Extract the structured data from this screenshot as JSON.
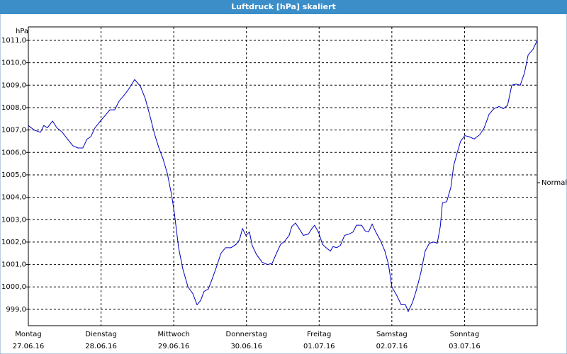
{
  "chart_data": {
    "type": "line",
    "title": "Luftdruck [hPa] skaliert",
    "y_label": "hPa",
    "xlim": [
      0,
      168
    ],
    "ylim": [
      998.27,
      1011.6
    ],
    "grid": true,
    "xticks": [
      {
        "value": 0,
        "label": "Montag"
      },
      {
        "value": 24,
        "label": "Dienstag"
      },
      {
        "value": 48,
        "label": "Mittwoch"
      },
      {
        "value": 72,
        "label": "Donnerstag"
      },
      {
        "value": 96,
        "label": "Freitag"
      },
      {
        "value": 120,
        "label": "Samstag"
      },
      {
        "value": 144,
        "label": "Sonntag"
      }
    ],
    "xtick_dates": [
      "27.06.16",
      "28.06.16",
      "29.06.16",
      "30.06.16",
      "01.07.16",
      "02.07.16",
      "03.07.16"
    ],
    "yticks": [
      {
        "value": 999,
        "label": "999,0"
      },
      {
        "value": 1000,
        "label": "1000,0"
      },
      {
        "value": 1001,
        "label": "1001,0"
      },
      {
        "value": 1002,
        "label": "1002,0"
      },
      {
        "value": 1003,
        "label": "1003,0"
      },
      {
        "value": 1004,
        "label": "1004,0"
      },
      {
        "value": 1005,
        "label": "1005,0"
      },
      {
        "value": 1006,
        "label": "1006,0"
      },
      {
        "value": 1007,
        "label": "1007,0"
      },
      {
        "value": 1008,
        "label": "1008,0"
      },
      {
        "value": 1009,
        "label": "1009,0"
      },
      {
        "value": 1010,
        "label": "1010,0"
      },
      {
        "value": 1011,
        "label": "1011,0"
      }
    ],
    "reference": {
      "label": "Normal",
      "value": 1004.65
    },
    "series": [
      {
        "color": "#0000c0",
        "x": [
          0,
          1.9,
          4,
          5.1,
          6.3,
          8,
          9.4,
          11.2,
          12.9,
          14.7,
          16.4,
          18,
          19.4,
          20.6,
          22,
          24.1,
          25.7,
          26.9,
          28.5,
          30,
          31.6,
          33,
          35.1,
          37,
          38.6,
          40.2,
          41.7,
          43.1,
          44.5,
          45.9,
          47.3,
          48.2,
          49.6,
          51,
          52.7,
          54.3,
          55.7,
          56.9,
          58,
          59.4,
          60.4,
          62,
          63.6,
          65.1,
          66.9,
          68.6,
          69.7,
          70.7,
          71.8,
          73,
          73.9,
          75.3,
          77.2,
          78.9,
          80.5,
          81.9,
          83.3,
          84.7,
          86.1,
          87,
          88.2,
          89.4,
          90.8,
          92.4,
          93.6,
          94.5,
          95.9,
          97.1,
          98.3,
          99.7,
          100.6,
          101.8,
          103,
          104.4,
          105.8,
          107.2,
          108.3,
          110,
          111.2,
          112.3,
          113.5,
          114.7,
          116.3,
          117.7,
          118.9,
          120,
          121.7,
          123.1,
          124.5,
          125.4,
          126.8,
          128.2,
          129.6,
          131,
          132.4,
          133.8,
          135,
          136,
          136.7,
          138.1,
          139.5,
          140.4,
          141.6,
          142.7,
          144.1,
          145.5,
          147.2,
          149.1,
          150.5,
          152.1,
          153.7,
          155.4,
          156.8,
          158.2,
          159.6,
          161,
          162.4,
          163.8,
          165,
          166.6,
          168
        ],
        "values": [
          1007.2,
          1007.0,
          1006.9,
          1007.2,
          1007.1,
          1007.4,
          1007.1,
          1006.9,
          1006.6,
          1006.3,
          1006.2,
          1006.2,
          1006.6,
          1006.7,
          1007.1,
          1007.45,
          1007.7,
          1007.9,
          1007.9,
          1008.3,
          1008.55,
          1008.8,
          1009.25,
          1008.95,
          1008.4,
          1007.6,
          1006.8,
          1006.2,
          1005.7,
          1005.05,
          1004.1,
          1003.3,
          1001.75,
          1000.8,
          1000.0,
          999.7,
          999.2,
          999.4,
          999.8,
          999.9,
          1000.25,
          1000.85,
          1001.5,
          1001.75,
          1001.75,
          1001.9,
          1002.1,
          1002.6,
          1002.3,
          1002.45,
          1001.85,
          1001.45,
          1001.1,
          1001.0,
          1001.05,
          1001.5,
          1001.9,
          1002.05,
          1002.3,
          1002.7,
          1002.85,
          1002.6,
          1002.3,
          1002.35,
          1002.6,
          1002.75,
          1002.4,
          1001.9,
          1001.75,
          1001.6,
          1001.8,
          1001.75,
          1001.85,
          1002.3,
          1002.35,
          1002.45,
          1002.75,
          1002.75,
          1002.5,
          1002.45,
          1002.8,
          1002.45,
          1002.05,
          1001.6,
          1001.0,
          1000.0,
          999.6,
          999.2,
          999.2,
          998.9,
          999.3,
          999.9,
          1000.65,
          1001.6,
          1001.95,
          1002.0,
          1001.95,
          1002.7,
          1003.75,
          1003.8,
          1004.45,
          1005.4,
          1006.0,
          1006.5,
          1006.75,
          1006.7,
          1006.6,
          1006.8,
          1007.1,
          1007.7,
          1007.95,
          1008.05,
          1007.95,
          1008.1,
          1009.0,
          1009.05,
          1009.0,
          1009.55,
          1010.35,
          1010.6,
          1011.0
        ]
      }
    ]
  }
}
